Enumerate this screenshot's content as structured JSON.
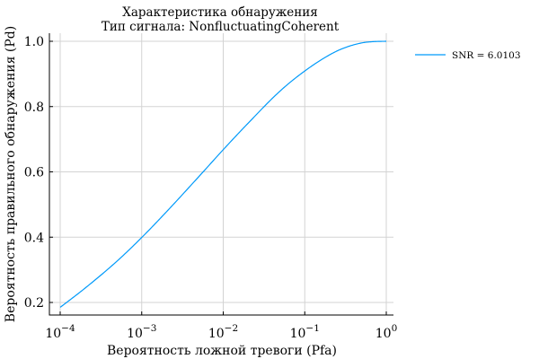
{
  "chart_data": {
    "type": "line",
    "title": "Характеристика обнаружения",
    "subtitle": "Тип сигнала: NonfluctuatingCoherent",
    "xlabel": "Вероятность ложной тревоги (Pfa)",
    "ylabel": "Вероятность правильного обнаружения (Pd)",
    "xscale": "log",
    "xlim": [
      0.0001,
      1
    ],
    "ylim": [
      0.165,
      1.02
    ],
    "grid": true,
    "legend_position": "top-right outside",
    "xticks": [
      {
        "value": 0.0001,
        "base": "10",
        "exp": "−4"
      },
      {
        "value": 0.001,
        "base": "10",
        "exp": "−3"
      },
      {
        "value": 0.01,
        "base": "10",
        "exp": "−2"
      },
      {
        "value": 0.1,
        "base": "10",
        "exp": "−1"
      },
      {
        "value": 1,
        "base": "10",
        "exp": "0"
      }
    ],
    "yticks": [
      {
        "value": 0.2,
        "label": "0.2"
      },
      {
        "value": 0.4,
        "label": "0.4"
      },
      {
        "value": 0.6,
        "label": "0.6"
      },
      {
        "value": 0.8,
        "label": "0.8"
      },
      {
        "value": 1.0,
        "label": "1.0"
      }
    ],
    "series": [
      {
        "name": "SNR = 6.0103",
        "color": "#009AFA",
        "x": [
          0.0001,
          0.0002,
          0.0005,
          0.001,
          0.002,
          0.005,
          0.01,
          0.02,
          0.05,
          0.1,
          0.2,
          0.3,
          0.5,
          0.7,
          1.0
        ],
        "y": [
          0.185,
          0.243,
          0.327,
          0.399,
          0.477,
          0.585,
          0.668,
          0.748,
          0.848,
          0.909,
          0.958,
          0.979,
          0.995,
          0.999,
          1.0
        ]
      }
    ]
  }
}
